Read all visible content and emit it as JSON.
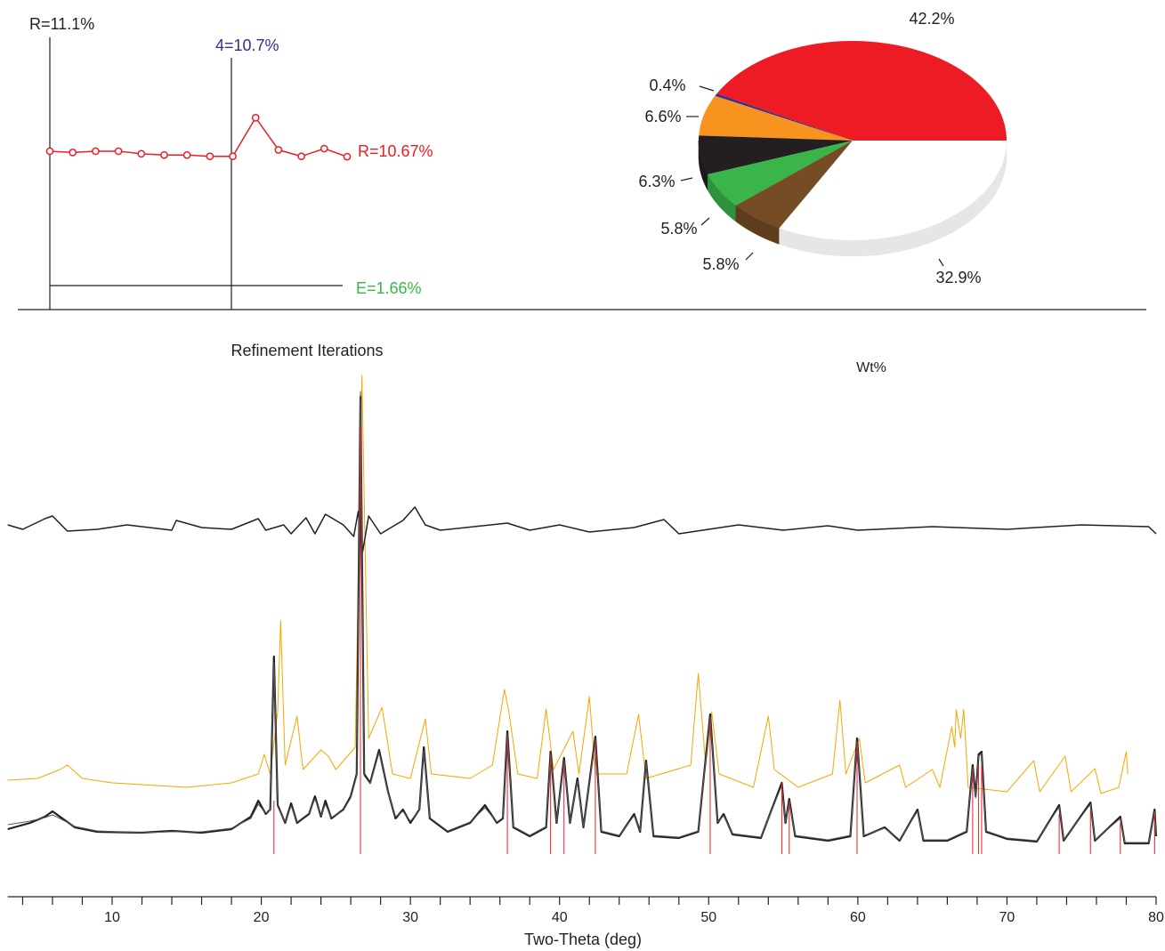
{
  "chart_data": [
    {
      "type": "line",
      "title": "Refinement Iterations",
      "values": [
        11.1,
        11.0,
        11.1,
        11.1,
        10.9,
        10.8,
        10.8,
        10.7,
        10.7,
        13.7,
        11.2,
        10.7,
        11.3,
        10.67
      ],
      "color": "#ed1c24",
      "markers": true,
      "ylim": [
        7.5,
        14
      ],
      "annotations": [
        {
          "text": "R=11.1%",
          "color": "#231f20"
        },
        {
          "text": "4=10.7%",
          "color": "#2e3192"
        },
        {
          "text": "R=10.67%",
          "color": "#ed1c24"
        },
        {
          "text": "E=1.66%",
          "color": "#39b54a"
        }
      ]
    },
    {
      "type": "pie",
      "title": "Wt%",
      "values": [
        42.2,
        0.4,
        6.6,
        6.3,
        5.8,
        5.8,
        32.9
      ],
      "value_labels": [
        "42.2%",
        "0.4%",
        "6.6%",
        "6.3%",
        "5.8%",
        "5.8%",
        "32.9%"
      ],
      "colors": [
        "#ed1c24",
        "#2e3192",
        "#f7931e",
        "#231f20",
        "#39b54a",
        "#754c24",
        "#ffffff"
      ],
      "startangle": 0,
      "counterclock": true
    },
    {
      "type": "line",
      "xlabel": "Two-Theta (deg)",
      "xlim": [
        3,
        80
      ],
      "xticks": [
        10,
        20,
        30,
        40,
        50,
        60,
        70,
        80
      ],
      "xminor_ticks": [
        4,
        6,
        8,
        12,
        14,
        16,
        18,
        22,
        24,
        26,
        28,
        32,
        34,
        36,
        38,
        42,
        44,
        46,
        48,
        52,
        54,
        56,
        58,
        62,
        64,
        66,
        68,
        72,
        74,
        76,
        78
      ],
      "ylim": [
        0,
        1080
      ],
      "x": [
        3,
        4.5,
        5.5,
        6,
        6.5,
        7.5,
        9,
        12,
        14,
        16,
        18,
        19.3,
        19.8,
        20.3,
        20.6,
        20.85,
        21.1,
        21.6,
        22,
        22.4,
        23.2,
        23.6,
        24,
        24.3,
        24.7,
        25.5,
        26,
        26.4,
        26.65,
        26.9,
        27.3,
        27.9,
        28.5,
        29,
        29.5,
        30,
        30.6,
        30.9,
        31.3,
        32.5,
        34,
        35,
        35.8,
        36.2,
        36.5,
        36.9,
        38,
        39.1,
        39.4,
        39.8,
        40.3,
        40.7,
        41.2,
        41.6,
        42.4,
        42.8,
        44,
        45,
        45.4,
        45.8,
        46.3,
        48,
        49.3,
        50.1,
        50.6,
        51,
        51.6,
        53.5,
        54.9,
        55.15,
        55.4,
        55.8,
        58,
        59.5,
        59.95,
        60.4,
        61.8,
        62.8,
        64,
        64.4,
        66,
        67.3,
        67.7,
        67.9,
        68.1,
        68.3,
        68.6,
        70,
        72,
        73.5,
        73.8,
        75.6,
        75.9,
        77.6,
        77.9,
        79.5,
        79.9,
        80
      ],
      "series": [
        {
          "color": "#f7a600",
          "linewidth": 1,
          "x": [
            3,
            5,
            6.5,
            7,
            8,
            10,
            15,
            18,
            19.8,
            20.2,
            20.6,
            21.1,
            21.3,
            21.6,
            22.4,
            22.8,
            24,
            24.5,
            25,
            26.3,
            26.75,
            27.2,
            28.1,
            28.8,
            30,
            31,
            31.4,
            34,
            35.5,
            36.3,
            36.6,
            37.2,
            38.5,
            39.1,
            39.6,
            40.9,
            41.3,
            42,
            42.4,
            44.5,
            45.3,
            45.8,
            48.8,
            49.3,
            49.8,
            50.2,
            50.7,
            53,
            54,
            54.4,
            56,
            58.3,
            58.8,
            59.2,
            60.1,
            60.5,
            62.8,
            63.2,
            65,
            65.5,
            66.3,
            66.5,
            66.6,
            66.9,
            67.1,
            67.4,
            70,
            71.8,
            72.2,
            73.9,
            74.3,
            75.9,
            76.3,
            77.5,
            78,
            78.1
          ],
          "values": [
            166,
            170,
            190,
            200,
            170,
            160,
            150,
            160,
            180,
            224,
            180,
            320,
            524,
            200,
            310,
            190,
            234,
            220,
            190,
            240,
            1076,
            260,
            330,
            180,
            170,
            304,
            180,
            170,
            200,
            370,
            320,
            180,
            170,
            326,
            190,
            276,
            180,
            354,
            180,
            180,
            314,
            170,
            200,
            406,
            200,
            320,
            180,
            150,
            310,
            190,
            150,
            180,
            346,
            180,
            260,
            160,
            200,
            150,
            190,
            150,
            286,
            240,
            324,
            260,
            326,
            150,
            140,
            210,
            140,
            220,
            140,
            192,
            136,
            150,
            230,
            180
          ]
        },
        {
          "color": "#231f20",
          "linewidth": 1.5,
          "x": [
            3,
            4,
            5.5,
            6,
            7,
            9,
            11,
            14,
            14.3,
            16,
            18,
            19.8,
            20.3,
            21.5,
            22,
            23,
            23.6,
            24.3,
            25.5,
            26.2,
            26.5,
            26.8,
            27.2,
            28,
            29.5,
            30.3,
            31,
            32,
            36.5,
            38,
            40,
            42,
            45,
            47,
            48,
            52,
            55,
            58,
            60,
            65,
            70,
            75,
            79.5,
            80
          ],
          "values": [
            740,
            730,
            754,
            760,
            726,
            730,
            740,
            728,
            750,
            734,
            730,
            754,
            728,
            740,
            720,
            756,
            720,
            764,
            740,
            714,
            770,
            680,
            760,
            720,
            750,
            780,
            740,
            728,
            744,
            728,
            740,
            724,
            734,
            752,
            720,
            740,
            728,
            738,
            728,
            736,
            730,
            740,
            736,
            720
          ]
        },
        {
          "color": "#231f20",
          "linewidth": 2.2,
          "values": [
            56,
            70,
            84,
            96,
            84,
            60,
            50,
            48,
            52,
            48,
            56,
            84,
            120,
            90,
            100,
            444,
            110,
            70,
            114,
            70,
            90,
            130,
            84,
            120,
            80,
            100,
            130,
            180,
            1028,
            180,
            160,
            234,
            140,
            80,
            100,
            70,
            100,
            240,
            80,
            50,
            70,
            110,
            70,
            80,
            276,
            60,
            40,
            60,
            230,
            70,
            216,
            70,
            170,
            60,
            264,
            50,
            40,
            90,
            50,
            210,
            40,
            36,
            50,
            314,
            70,
            90,
            44,
            36,
            160,
            70,
            124,
            40,
            30,
            40,
            260,
            40,
            60,
            30,
            100,
            30,
            30,
            50,
            200,
            130,
            224,
            230,
            50,
            34,
            28,
            110,
            30,
            116,
            30,
            84,
            24,
            24,
            100,
            40
          ]
        },
        {
          "color": "#58595b",
          "linewidth": 1,
          "values": [
            66,
            74,
            82,
            88,
            80,
            62,
            52,
            48,
            50,
            50,
            58,
            80,
            112,
            92,
            98,
            430,
            106,
            72,
            108,
            72,
            92,
            124,
            86,
            112,
            82,
            98,
            126,
            176,
            1040,
            176,
            158,
            228,
            138,
            84,
            96,
            74,
            98,
            232,
            82,
            52,
            72,
            104,
            72,
            82,
            270,
            62,
            42,
            62,
            224,
            72,
            210,
            72,
            164,
            62,
            258,
            52,
            42,
            86,
            52,
            206,
            42,
            38,
            52,
            308,
            72,
            86,
            46,
            38,
            154,
            72,
            118,
            42,
            32,
            42,
            254,
            42,
            58,
            32,
            96,
            32,
            32,
            52,
            194,
            126,
            220,
            226,
            52,
            36,
            30,
            106,
            32,
            112,
            32,
            80,
            26,
            26,
            96,
            42
          ]
        },
        {
          "color": "#ed1c24",
          "linewidth": 1,
          "style": "sticks",
          "x": [
            20.85,
            26.65,
            36.5,
            39.4,
            40.3,
            42.4,
            50.1,
            54.9,
            55.4,
            59.95,
            67.7,
            68.1,
            68.3,
            73.5,
            75.6,
            77.6,
            79.9
          ],
          "values": [
            120,
            960,
            260,
            210,
            200,
            250,
            300,
            160,
            120,
            250,
            180,
            200,
            200,
            90,
            100,
            70,
            90
          ]
        }
      ]
    }
  ]
}
